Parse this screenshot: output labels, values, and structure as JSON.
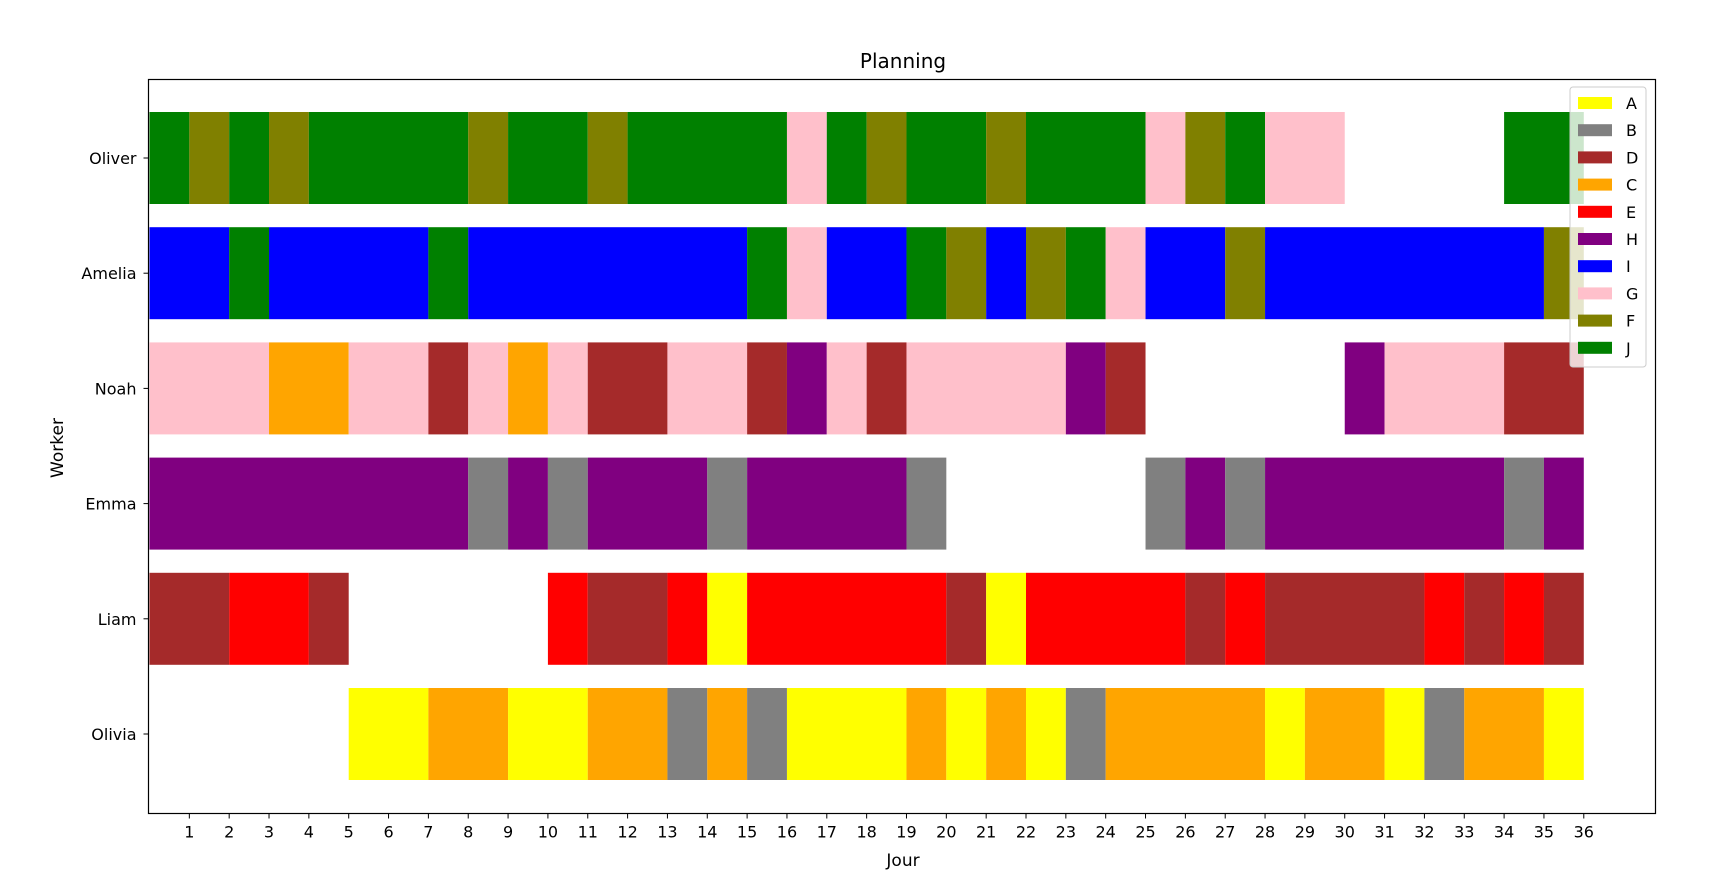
{
  "chart_data": {
    "type": "gantt",
    "title": "Planning",
    "xlabel": "Jour",
    "ylabel": "Worker",
    "xlim": [
      -0.025,
      37.8
    ],
    "x_ticks": [
      1,
      2,
      3,
      4,
      5,
      6,
      7,
      8,
      9,
      10,
      11,
      12,
      13,
      14,
      15,
      16,
      17,
      18,
      19,
      20,
      21,
      22,
      23,
      24,
      25,
      26,
      27,
      28,
      29,
      30,
      31,
      32,
      33,
      34,
      35,
      36
    ],
    "workers": [
      "Oliver",
      "Amelia",
      "Noah",
      "Emma",
      "Liam",
      "Olivia"
    ],
    "legend_position": "top-right",
    "colors": {
      "A": "#ffff00",
      "B": "#808080",
      "D": "#a52a2a",
      "C": "#ffa500",
      "E": "#ff0000",
      "H": "#800080",
      "I": "#0000ff",
      "G": "#ffc0cb",
      "F": "#808000",
      "J": "#008000"
    },
    "legend": [
      "A",
      "B",
      "D",
      "C",
      "E",
      "H",
      "I",
      "G",
      "F",
      "J"
    ],
    "tasks": {
      "Oliver": [
        [
          0,
          1,
          "J"
        ],
        [
          1,
          2,
          "F"
        ],
        [
          2,
          3,
          "J"
        ],
        [
          3,
          4,
          "F"
        ],
        [
          4,
          8,
          "J"
        ],
        [
          8,
          9,
          "F"
        ],
        [
          9,
          11,
          "J"
        ],
        [
          11,
          12,
          "F"
        ],
        [
          12,
          16,
          "J"
        ],
        [
          16,
          17,
          "G"
        ],
        [
          17,
          18,
          "J"
        ],
        [
          18,
          19,
          "F"
        ],
        [
          19,
          21,
          "J"
        ],
        [
          21,
          22,
          "F"
        ],
        [
          22,
          25,
          "J"
        ],
        [
          25,
          26,
          "G"
        ],
        [
          26,
          27,
          "F"
        ],
        [
          27,
          28,
          "J"
        ],
        [
          28,
          30,
          "G"
        ],
        [
          34,
          36,
          "J"
        ]
      ],
      "Amelia": [
        [
          0,
          2,
          "I"
        ],
        [
          2,
          3,
          "J"
        ],
        [
          3,
          7,
          "I"
        ],
        [
          7,
          8,
          "J"
        ],
        [
          8,
          15,
          "I"
        ],
        [
          15,
          16,
          "J"
        ],
        [
          16,
          17,
          "G"
        ],
        [
          17,
          19,
          "I"
        ],
        [
          19,
          20,
          "J"
        ],
        [
          20,
          21,
          "F"
        ],
        [
          21,
          22,
          "I"
        ],
        [
          22,
          23,
          "F"
        ],
        [
          23,
          24,
          "J"
        ],
        [
          24,
          25,
          "G"
        ],
        [
          25,
          27,
          "I"
        ],
        [
          27,
          28,
          "F"
        ],
        [
          28,
          35,
          "I"
        ],
        [
          35,
          36,
          "F"
        ]
      ],
      "Noah": [
        [
          0,
          3,
          "G"
        ],
        [
          3,
          5,
          "C"
        ],
        [
          5,
          7,
          "G"
        ],
        [
          7,
          8,
          "D"
        ],
        [
          8,
          9,
          "G"
        ],
        [
          9,
          10,
          "C"
        ],
        [
          10,
          11,
          "G"
        ],
        [
          11,
          13,
          "D"
        ],
        [
          13,
          15,
          "G"
        ],
        [
          15,
          16,
          "D"
        ],
        [
          16,
          17,
          "H"
        ],
        [
          17,
          18,
          "G"
        ],
        [
          18,
          19,
          "D"
        ],
        [
          19,
          23,
          "G"
        ],
        [
          23,
          24,
          "H"
        ],
        [
          24,
          25,
          "D"
        ],
        [
          30,
          31,
          "H"
        ],
        [
          31,
          34,
          "G"
        ],
        [
          34,
          36,
          "D"
        ]
      ],
      "Emma": [
        [
          0,
          8,
          "H"
        ],
        [
          8,
          9,
          "B"
        ],
        [
          9,
          10,
          "H"
        ],
        [
          10,
          11,
          "B"
        ],
        [
          11,
          14,
          "H"
        ],
        [
          14,
          15,
          "B"
        ],
        [
          15,
          19,
          "H"
        ],
        [
          19,
          20,
          "B"
        ],
        [
          25,
          26,
          "B"
        ],
        [
          26,
          27,
          "H"
        ],
        [
          27,
          28,
          "B"
        ],
        [
          28,
          34,
          "H"
        ],
        [
          34,
          35,
          "B"
        ],
        [
          35,
          36,
          "H"
        ]
      ],
      "Liam": [
        [
          0,
          2,
          "D"
        ],
        [
          2,
          4,
          "E"
        ],
        [
          4,
          5,
          "D"
        ],
        [
          10,
          11,
          "E"
        ],
        [
          11,
          13,
          "D"
        ],
        [
          13,
          14,
          "E"
        ],
        [
          14,
          15,
          "A"
        ],
        [
          15,
          20,
          "E"
        ],
        [
          20,
          21,
          "D"
        ],
        [
          21,
          22,
          "A"
        ],
        [
          22,
          26,
          "E"
        ],
        [
          26,
          27,
          "D"
        ],
        [
          27,
          28,
          "E"
        ],
        [
          28,
          32,
          "D"
        ],
        [
          32,
          33,
          "E"
        ],
        [
          33,
          34,
          "D"
        ],
        [
          34,
          35,
          "E"
        ],
        [
          35,
          36,
          "D"
        ]
      ],
      "Olivia": [
        [
          5,
          7,
          "A"
        ],
        [
          7,
          9,
          "C"
        ],
        [
          9,
          11,
          "A"
        ],
        [
          11,
          13,
          "C"
        ],
        [
          13,
          14,
          "B"
        ],
        [
          14,
          15,
          "C"
        ],
        [
          15,
          16,
          "B"
        ],
        [
          16,
          19,
          "A"
        ],
        [
          19,
          20,
          "C"
        ],
        [
          20,
          21,
          "A"
        ],
        [
          21,
          22,
          "C"
        ],
        [
          22,
          23,
          "A"
        ],
        [
          23,
          24,
          "B"
        ],
        [
          24,
          28,
          "C"
        ],
        [
          28,
          29,
          "A"
        ],
        [
          29,
          31,
          "C"
        ],
        [
          31,
          32,
          "A"
        ],
        [
          32,
          33,
          "B"
        ],
        [
          33,
          35,
          "C"
        ],
        [
          35,
          36,
          "A"
        ]
      ]
    }
  }
}
